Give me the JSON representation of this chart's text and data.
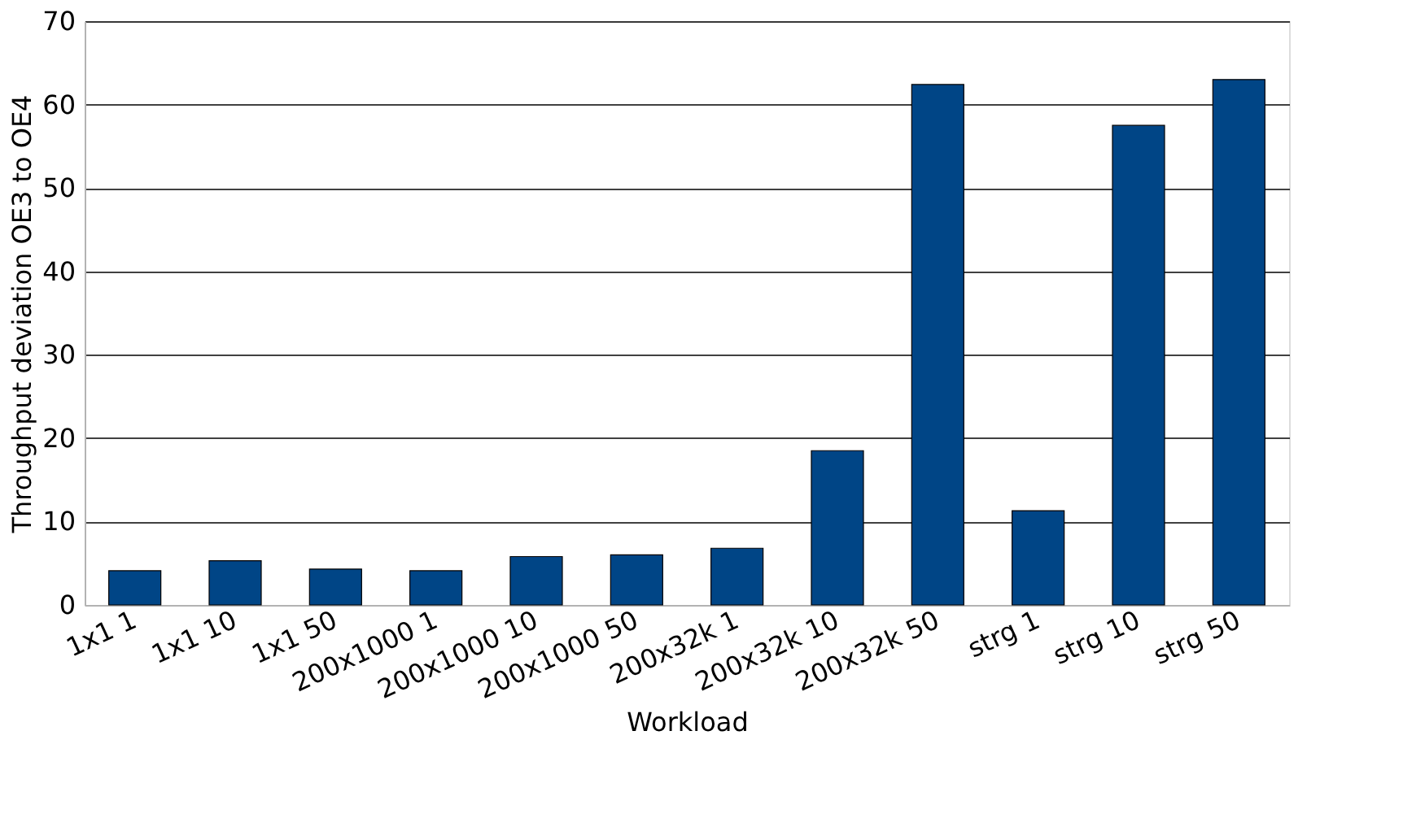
{
  "chart_data": {
    "type": "bar",
    "xlabel": "Workload",
    "ylabel": "Throughput deviation OE3 to OE4",
    "categories": [
      "1x1 1",
      "1x1 10",
      "1x1 50",
      "200x1000 1",
      "200x1000 10",
      "200x1000 50",
      "200x32k 1",
      "200x32k 10",
      "200x32k 50",
      "strg 1",
      "strg 10",
      "strg 50"
    ],
    "values": [
      4.1,
      5.3,
      4.3,
      4.1,
      5.8,
      6.0,
      6.8,
      18.5,
      62.4,
      11.3,
      57.5,
      63.0
    ],
    "color": "#004586",
    "ylim": [
      0,
      70
    ],
    "yticks": [
      0,
      10,
      20,
      30,
      40,
      50,
      60,
      70
    ],
    "grid": "y"
  }
}
